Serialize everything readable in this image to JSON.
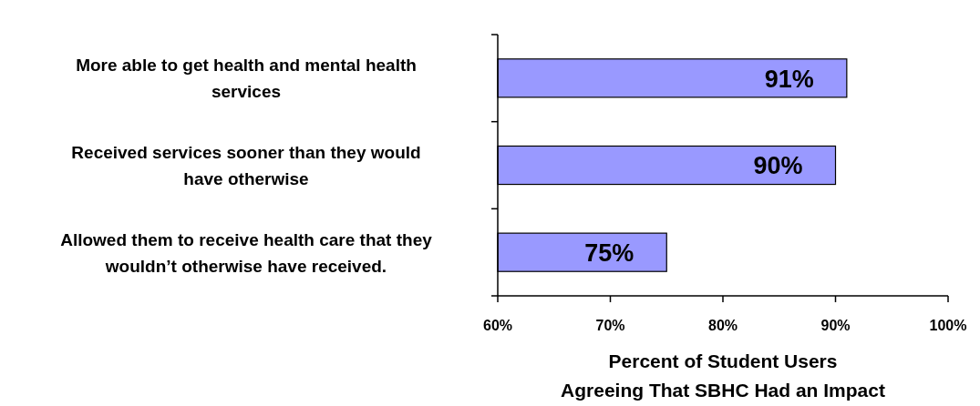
{
  "chart_data": {
    "type": "bar",
    "orientation": "horizontal",
    "categories": [
      "More able to get health and mental health services",
      "Received services sooner than they would have otherwise",
      "Allowed them to receive health care that they wouldn’t otherwise have received."
    ],
    "values": [
      91,
      90,
      75
    ],
    "color": "#9999ff",
    "value_labels": [
      "91%",
      "90%",
      "75%"
    ],
    "xlim": [
      60,
      100
    ],
    "xticks": [
      {
        "value": 60,
        "label": "60%"
      },
      {
        "value": 70,
        "label": "70%"
      },
      {
        "value": 80,
        "label": "80%"
      },
      {
        "value": 90,
        "label": "90%"
      },
      {
        "value": 100,
        "label": "100%"
      }
    ],
    "xlabel": "Percent of Student Users\nAgreeing That SBHC Had an Impact",
    "grid": false
  }
}
